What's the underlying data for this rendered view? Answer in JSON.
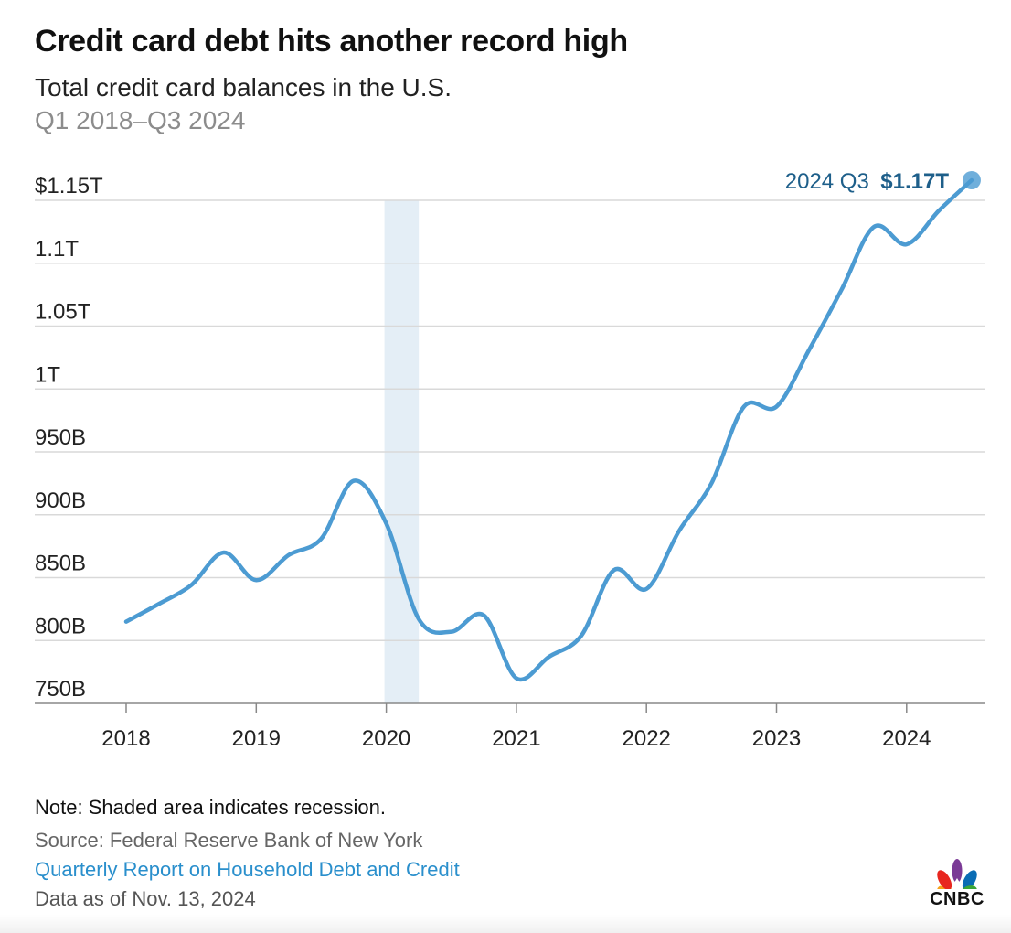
{
  "header": {
    "title": "Credit card debt hits another record high",
    "subtitle": "Total credit card balances in the U.S.",
    "date_range": "Q1 2018–Q3 2024"
  },
  "callout": {
    "period": "2024 Q3",
    "value": "$1.17T"
  },
  "footer": {
    "note": "Note: Shaded area indicates recession.",
    "source": "Source: Federal Reserve Bank of New York",
    "report": "Quarterly Report on Household Debt and Credit",
    "as_of": "Data as of Nov. 13, 2024"
  },
  "logo": {
    "text": "CNBC",
    "icon": "cnbc-peacock-icon"
  },
  "colors": {
    "line": "#4c9bd2",
    "recession": "#e4eef6",
    "grid": "#d9d9d9",
    "axis": "#888888",
    "callout_text": "#1e5f8a",
    "link": "#2a8fcc"
  },
  "chart_data": {
    "type": "line",
    "title": "Credit card debt hits another record high",
    "subtitle": "Total credit card balances in the U.S.",
    "xlabel": "",
    "ylabel": "",
    "ylim": [
      750,
      1150
    ],
    "y_ticks": [
      {
        "value": 1150,
        "label": "$1.15T"
      },
      {
        "value": 1100,
        "label": "1.1T"
      },
      {
        "value": 1050,
        "label": "1.05T"
      },
      {
        "value": 1000,
        "label": "1T"
      },
      {
        "value": 950,
        "label": "950B"
      },
      {
        "value": 900,
        "label": "900B"
      },
      {
        "value": 850,
        "label": "850B"
      },
      {
        "value": 800,
        "label": "800B"
      },
      {
        "value": 750,
        "label": "750B"
      }
    ],
    "x_ticks": [
      "2018",
      "2019",
      "2020",
      "2021",
      "2022",
      "2023",
      "2024"
    ],
    "grid": true,
    "recession": {
      "start": "2020 Q1",
      "end": "2020 Q2"
    },
    "series": [
      {
        "values": [
          {
            "x": "2018 Q1",
            "y": 815
          },
          {
            "x": "2018 Q2",
            "y": 829
          },
          {
            "x": "2018 Q3",
            "y": 844
          },
          {
            "x": "2018 Q4",
            "y": 870
          },
          {
            "x": "2019 Q1",
            "y": 848
          },
          {
            "x": "2019 Q2",
            "y": 868
          },
          {
            "x": "2019 Q3",
            "y": 881
          },
          {
            "x": "2019 Q4",
            "y": 927
          },
          {
            "x": "2020 Q1",
            "y": 893
          },
          {
            "x": "2020 Q2",
            "y": 817
          },
          {
            "x": "2020 Q3",
            "y": 807
          },
          {
            "x": "2020 Q4",
            "y": 820
          },
          {
            "x": "2021 Q1",
            "y": 770
          },
          {
            "x": "2021 Q2",
            "y": 787
          },
          {
            "x": "2021 Q3",
            "y": 804
          },
          {
            "x": "2021 Q4",
            "y": 856
          },
          {
            "x": "2022 Q1",
            "y": 841
          },
          {
            "x": "2022 Q2",
            "y": 887
          },
          {
            "x": "2022 Q3",
            "y": 925
          },
          {
            "x": "2022 Q4",
            "y": 986
          },
          {
            "x": "2023 Q1",
            "y": 986
          },
          {
            "x": "2023 Q2",
            "y": 1031
          },
          {
            "x": "2023 Q3",
            "y": 1079
          },
          {
            "x": "2023 Q4",
            "y": 1129
          },
          {
            "x": "2024 Q1",
            "y": 1115
          },
          {
            "x": "2024 Q2",
            "y": 1142
          },
          {
            "x": "2024 Q3",
            "y": 1166
          }
        ]
      }
    ]
  }
}
